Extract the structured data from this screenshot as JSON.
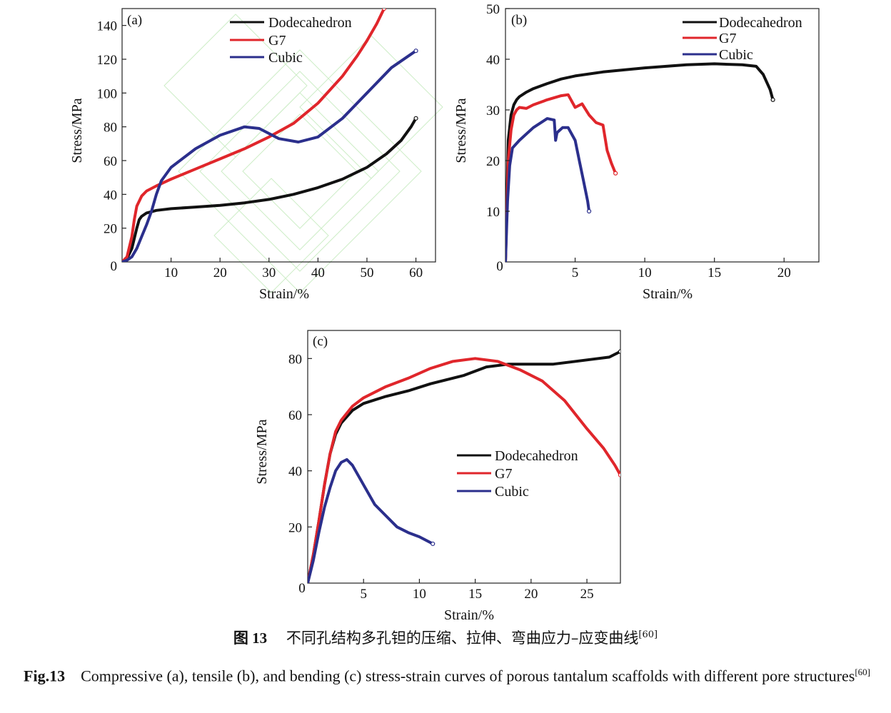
{
  "caption": {
    "cn_label": "图 13",
    "cn_text": "不同孔结构多孔钽的压缩、拉伸、弯曲应力–应变曲线",
    "cn_ref": "[60]",
    "en_label": "Fig.13",
    "en_text": "Compressive (a), tensile (b), and bending (c) stress-strain curves of porous tantalum scaffolds with different pore structures",
    "en_ref": "[60]"
  },
  "colors": {
    "Dodecahedron": "#111111",
    "G7": "#e0262b",
    "Cubic": "#2b2f8c"
  },
  "chart_data": [
    {
      "panel": "(a)",
      "type": "line",
      "xlabel": "Strain/%",
      "ylabel": "Stress/MPa",
      "xlim": [
        0,
        64
      ],
      "ylim": [
        0,
        150
      ],
      "xticks": [
        10,
        20,
        30,
        40,
        50,
        60
      ],
      "yticks": [
        20,
        40,
        60,
        80,
        100,
        120,
        140
      ],
      "origin_label": "0",
      "legend": [
        "Dodecahedron",
        "G7",
        "Cubic"
      ],
      "series": [
        {
          "name": "Dodecahedron",
          "x": [
            0,
            1,
            2,
            3,
            3.5,
            4,
            5,
            7,
            10,
            15,
            20,
            25,
            30,
            35,
            40,
            45,
            50,
            54,
            57,
            59,
            60
          ],
          "y": [
            0,
            2,
            8,
            20,
            25,
            27,
            29,
            30.5,
            31.5,
            32.5,
            33.5,
            35,
            37,
            40,
            44,
            49,
            56,
            64,
            72,
            80,
            85
          ]
        },
        {
          "name": "G7",
          "x": [
            0,
            1,
            2,
            2.5,
            3,
            4,
            5,
            7,
            10,
            15,
            20,
            25,
            30,
            35,
            40,
            45,
            48,
            50,
            52,
            53.5
          ],
          "y": [
            0,
            3,
            15,
            25,
            33,
            39,
            42,
            45,
            49,
            55,
            61,
            67,
            74,
            82,
            94,
            110,
            122,
            131,
            141,
            150
          ]
        },
        {
          "name": "Cubic",
          "x": [
            0,
            1,
            2,
            3,
            4,
            5,
            6,
            7,
            8,
            10,
            15,
            20,
            25,
            28,
            32,
            36,
            40,
            45,
            50,
            55,
            60
          ],
          "y": [
            0,
            1,
            3,
            8,
            15,
            22,
            30,
            40,
            48,
            56,
            67,
            75,
            80,
            79,
            73,
            71,
            74,
            85,
            100,
            115,
            125
          ]
        }
      ]
    },
    {
      "panel": "(b)",
      "type": "line",
      "xlabel": "Strain/%",
      "ylabel": "Stress/MPa",
      "xlim": [
        0,
        22.5
      ],
      "ylim": [
        0,
        50
      ],
      "xticks": [
        5,
        10,
        15,
        20
      ],
      "yticks": [
        10,
        20,
        30,
        40,
        50
      ],
      "origin_label": "0",
      "legend": [
        "Dodecahedron",
        "G7",
        "Cubic"
      ],
      "series": [
        {
          "name": "Dodecahedron",
          "x": [
            0,
            0.2,
            0.4,
            0.6,
            0.8,
            1,
            1.5,
            2,
            3,
            4,
            5,
            7,
            10,
            13,
            15,
            17,
            18,
            18.5,
            19,
            19.2
          ],
          "y": [
            0,
            24,
            29,
            31,
            32,
            32.6,
            33.5,
            34.2,
            35.2,
            36.1,
            36.7,
            37.5,
            38.3,
            38.9,
            39.1,
            38.9,
            38.6,
            37,
            34,
            32
          ]
        },
        {
          "name": "G7",
          "x": [
            0,
            0.2,
            0.4,
            0.6,
            0.8,
            1,
            1.5,
            2,
            3,
            4,
            4.5,
            5,
            5.5,
            6,
            6.5,
            7,
            7.3,
            7.6,
            7.9
          ],
          "y": [
            0,
            20,
            26,
            29,
            30,
            30.5,
            30.3,
            31,
            32,
            32.8,
            33,
            30.5,
            31.2,
            29,
            27.5,
            27,
            22,
            19.5,
            17.5
          ]
        },
        {
          "name": "Cubic",
          "x": [
            0,
            0.15,
            0.3,
            0.5,
            1,
            2,
            3,
            3.5,
            3.6,
            3.7,
            4.1,
            4.5,
            5,
            5.3,
            5.6,
            5.9,
            6
          ],
          "y": [
            0,
            12,
            19,
            22.5,
            24,
            26.5,
            28.3,
            28,
            24,
            25.5,
            26.5,
            26.5,
            24,
            20,
            16,
            12,
            10
          ]
        }
      ]
    },
    {
      "panel": "(c)",
      "type": "line",
      "xlabel": "Strain/%",
      "ylabel": "Stress/MPa",
      "xlim": [
        0,
        28
      ],
      "ylim": [
        0,
        90
      ],
      "xticks": [
        5,
        10,
        15,
        20,
        25
      ],
      "yticks": [
        20,
        40,
        60,
        80
      ],
      "origin_label": "0",
      "legend": [
        "Dodecahedron",
        "G7",
        "Cubic"
      ],
      "series": [
        {
          "name": "Dodecahedron",
          "x": [
            0,
            0.5,
            1,
            1.5,
            2,
            2.5,
            3,
            4,
            5,
            7,
            9,
            11,
            14,
            16,
            18,
            20,
            22,
            25,
            27,
            28
          ],
          "y": [
            0,
            10,
            22,
            35,
            46,
            53,
            57,
            61.5,
            64,
            66.5,
            68.5,
            71,
            74,
            77,
            78,
            78,
            78,
            79.5,
            80.5,
            82.5
          ]
        },
        {
          "name": "G7",
          "x": [
            0,
            0.5,
            1,
            1.5,
            2,
            2.5,
            3,
            4,
            5,
            7,
            9,
            11,
            13,
            15,
            17,
            19,
            21,
            23,
            25,
            26.5,
            27.5,
            28
          ],
          "y": [
            0,
            10,
            22,
            35,
            46,
            54,
            58,
            63,
            66,
            70,
            73,
            76.5,
            79,
            80,
            79,
            76,
            72,
            65,
            55,
            48,
            42,
            38.5
          ]
        },
        {
          "name": "Cubic",
          "x": [
            0,
            0.5,
            1,
            1.5,
            2,
            2.5,
            3,
            3.5,
            4,
            5,
            6,
            7,
            8,
            9,
            10,
            11.2
          ],
          "y": [
            0,
            8,
            18,
            27,
            34,
            40,
            43,
            44,
            42,
            35,
            28,
            24,
            20,
            18,
            16.5,
            14
          ]
        }
      ]
    }
  ]
}
